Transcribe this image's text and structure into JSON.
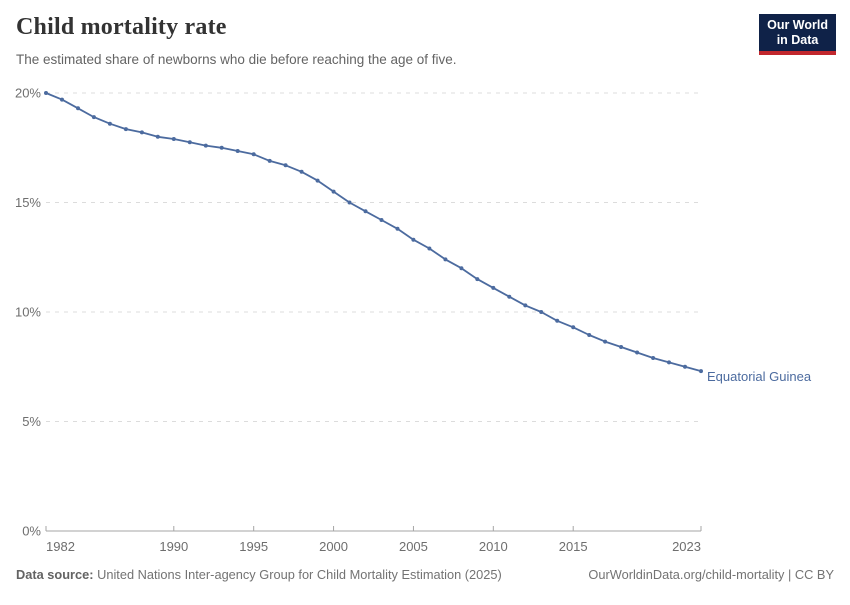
{
  "header": {
    "title": "Child mortality rate",
    "subtitle": "The estimated share of newborns who die before reaching the age of five.",
    "logo": {
      "line1": "Our World",
      "line2": "in Data"
    }
  },
  "chart_data": {
    "type": "line",
    "title": "Child mortality rate",
    "xlabel": "",
    "ylabel": "",
    "xlim": [
      1982,
      2023
    ],
    "ylim": [
      0,
      20
    ],
    "grid": "horizontal-dashed",
    "x_ticks": [
      1982,
      1990,
      1995,
      2000,
      2005,
      2010,
      2015,
      2023
    ],
    "y_ticks": [
      0,
      5,
      10,
      15,
      20
    ],
    "y_tick_suffix": "%",
    "series": [
      {
        "name": "Equatorial Guinea",
        "color": "#4C6B9F",
        "x": [
          1982,
          1983,
          1984,
          1985,
          1986,
          1987,
          1988,
          1989,
          1990,
          1991,
          1992,
          1993,
          1994,
          1995,
          1996,
          1997,
          1998,
          1999,
          2000,
          2001,
          2002,
          2003,
          2004,
          2005,
          2006,
          2007,
          2008,
          2009,
          2010,
          2011,
          2012,
          2013,
          2014,
          2015,
          2016,
          2017,
          2018,
          2019,
          2020,
          2021,
          2022,
          2023
        ],
        "values": [
          20.0,
          19.7,
          19.3,
          18.9,
          18.6,
          18.35,
          18.2,
          18.0,
          17.9,
          17.75,
          17.6,
          17.5,
          17.35,
          17.2,
          16.9,
          16.7,
          16.4,
          16.0,
          15.5,
          15.0,
          14.6,
          14.2,
          13.8,
          13.3,
          12.9,
          12.4,
          12.0,
          11.5,
          11.1,
          10.7,
          10.3,
          10.0,
          9.6,
          9.3,
          8.95,
          8.65,
          8.4,
          8.15,
          7.9,
          7.7,
          7.5,
          7.3
        ]
      }
    ],
    "end_label": "Equatorial Guinea"
  },
  "footer": {
    "source_label": "Data source:",
    "source_text": " United Nations Inter-agency Group for Child Mortality Estimation (2025)",
    "link_text": "OurWorldinData.org/child-mortality | CC BY"
  },
  "colors": {
    "line": "#4C6B9F",
    "end_label": "#4C6B9F",
    "gridline": "#dcdcdc",
    "axis": "#a5a5a5",
    "tick_label": "#6e6e6e",
    "logo_bg": "#0f2248",
    "logo_red": "#c1272d"
  }
}
